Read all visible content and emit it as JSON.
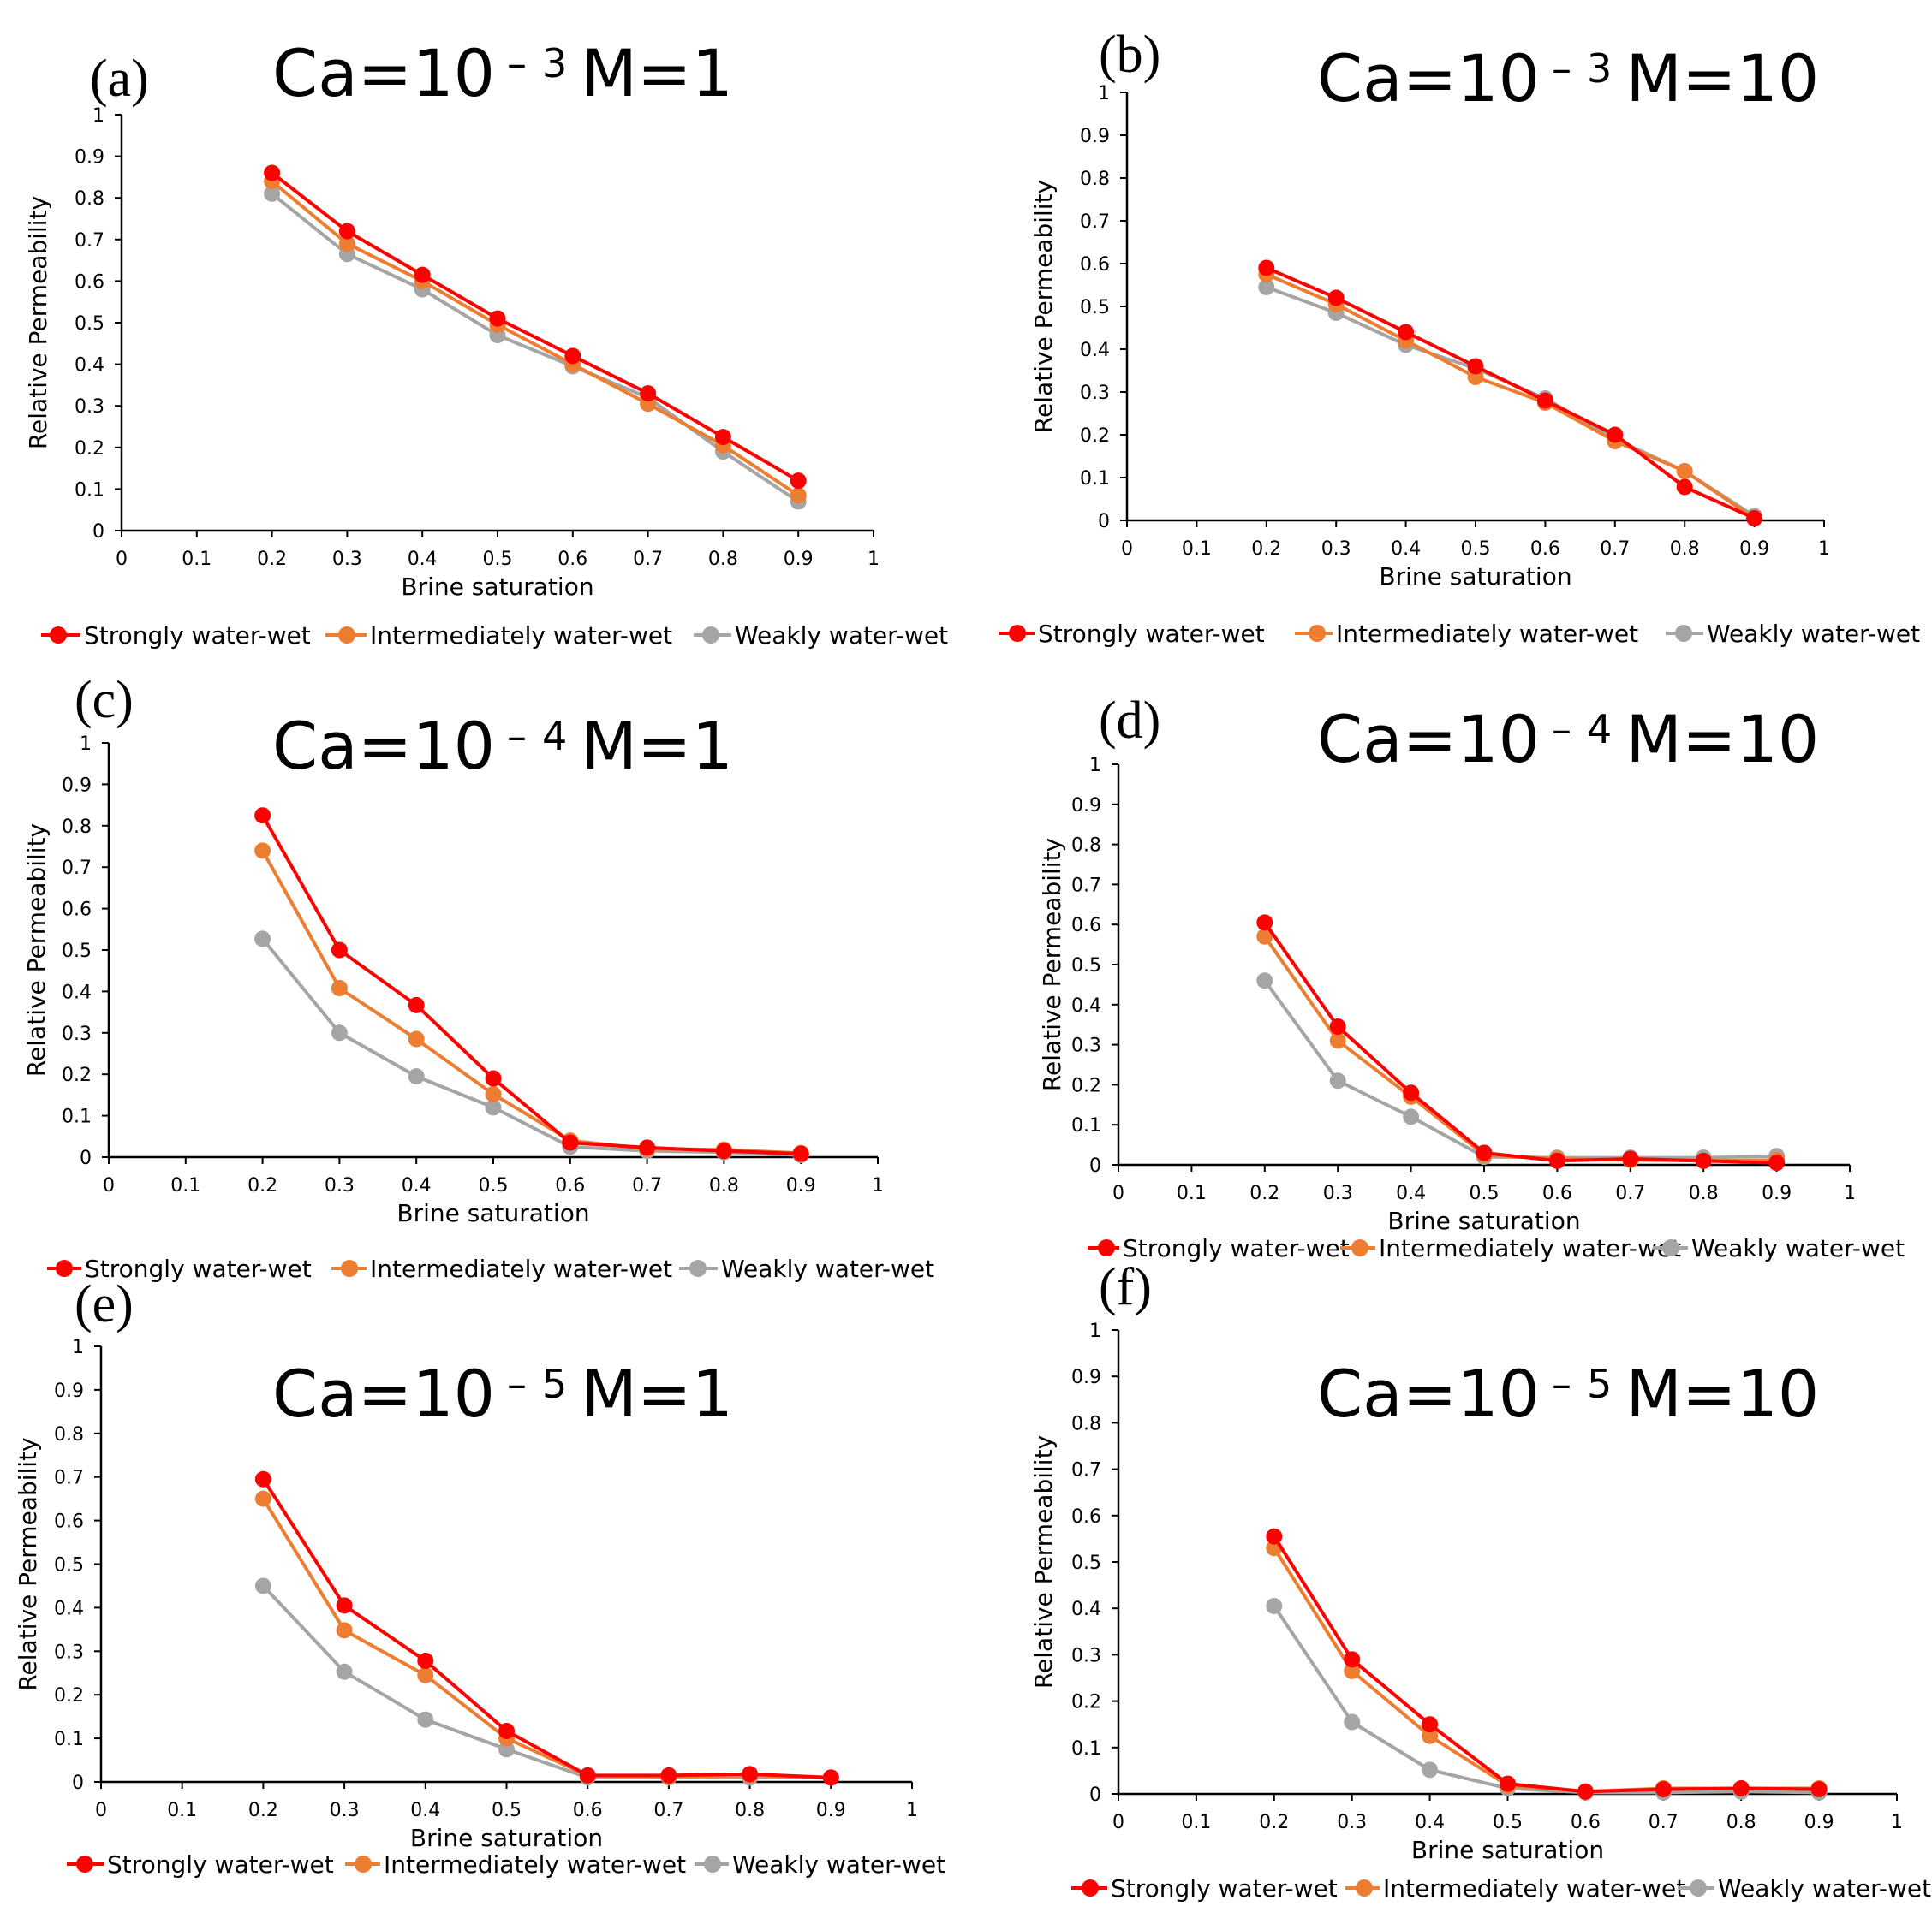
{
  "colors": {
    "strong": "#FF0000",
    "intermediate": "#ED7D31",
    "weak": "#A5A5A5",
    "axis": "#000000",
    "text": "#000000"
  },
  "legend_labels": [
    "Strongly water-wet",
    "Intermediately water-wet",
    "Weakly water-wet"
  ],
  "chart_data": [
    {
      "panel": "(a)",
      "type": "line",
      "title_base": "Ca=10",
      "title_minus": "–",
      "title_exp": "3",
      "title_m": "M=1",
      "xlabel": "Brine saturation",
      "ylabel": "Relative Permeability",
      "xlim": [
        0,
        1
      ],
      "ylim": [
        0,
        1
      ],
      "xticks": [
        "0",
        "0.1",
        "0.2",
        "0.3",
        "0.4",
        "0.5",
        "0.6",
        "0.7",
        "0.8",
        "0.9",
        "1"
      ],
      "yticks": [
        "0",
        "0.1",
        "0.2",
        "0.3",
        "0.4",
        "0.5",
        "0.6",
        "0.7",
        "0.8",
        "0.9",
        "1"
      ],
      "x": [
        0.2,
        0.3,
        0.4,
        0.5,
        0.6,
        0.7,
        0.8,
        0.9
      ],
      "series": [
        {
          "name": "Strongly water-wet",
          "values": [
            0.86,
            0.72,
            0.615,
            0.51,
            0.42,
            0.33,
            0.225,
            0.12
          ]
        },
        {
          "name": "Intermediately water-wet",
          "values": [
            0.84,
            0.69,
            0.6,
            0.495,
            0.4,
            0.305,
            0.205,
            0.085
          ]
        },
        {
          "name": "Weakly water-wet",
          "values": [
            0.81,
            0.665,
            0.58,
            0.47,
            0.395,
            0.32,
            0.19,
            0.07
          ]
        }
      ]
    },
    {
      "panel": "(b)",
      "type": "line",
      "title_base": "Ca=10",
      "title_minus": "–",
      "title_exp": "3",
      "title_m": "M=10",
      "xlabel": "Brine saturation",
      "ylabel": "Relative Permeability",
      "xlim": [
        0,
        1
      ],
      "ylim": [
        0,
        1
      ],
      "xticks": [
        "0",
        "0.1",
        "0.2",
        "0.3",
        "0.4",
        "0.5",
        "0.6",
        "0.7",
        "0.8",
        "0.9",
        "1"
      ],
      "yticks": [
        "0",
        "0.1",
        "0.2",
        "0.3",
        "0.4",
        "0.5",
        "0.6",
        "0.7",
        "0.8",
        "0.9",
        "1"
      ],
      "x": [
        0.2,
        0.3,
        0.4,
        0.5,
        0.6,
        0.7,
        0.8,
        0.9
      ],
      "series": [
        {
          "name": "Strongly water-wet",
          "values": [
            0.59,
            0.52,
            0.44,
            0.36,
            0.28,
            0.2,
            0.078,
            0.005
          ]
        },
        {
          "name": "Intermediately water-wet",
          "values": [
            0.575,
            0.505,
            0.42,
            0.335,
            0.275,
            0.185,
            0.115,
            0.005
          ]
        },
        {
          "name": "Weakly water-wet",
          "values": [
            0.545,
            0.485,
            0.41,
            0.355,
            0.285,
            0.19,
            0.115,
            0.01
          ]
        }
      ]
    },
    {
      "panel": "(c)",
      "type": "line",
      "title_base": "Ca=10",
      "title_minus": "–",
      "title_exp": "4",
      "title_m": "M=1",
      "xlabel": "Brine saturation",
      "ylabel": "Relative Permeability",
      "xlim": [
        0,
        1
      ],
      "ylim": [
        0,
        1
      ],
      "xticks": [
        "0",
        "0.1",
        "0.2",
        "0.3",
        "0.4",
        "0.5",
        "0.6",
        "0.7",
        "0.8",
        "0.9",
        "1"
      ],
      "yticks": [
        "0",
        "0.1",
        "0.2",
        "0.3",
        "0.4",
        "0.5",
        "0.6",
        "0.7",
        "0.8",
        "0.9",
        "1"
      ],
      "x": [
        0.2,
        0.3,
        0.4,
        0.5,
        0.6,
        0.7,
        0.8,
        0.9
      ],
      "series": [
        {
          "name": "Strongly water-wet",
          "values": [
            0.825,
            0.5,
            0.367,
            0.19,
            0.035,
            0.023,
            0.015,
            0.008
          ]
        },
        {
          "name": "Intermediately water-wet",
          "values": [
            0.74,
            0.408,
            0.285,
            0.152,
            0.04,
            0.02,
            0.018,
            0.01
          ]
        },
        {
          "name": "Weakly water-wet",
          "values": [
            0.527,
            0.3,
            0.195,
            0.12,
            0.025,
            0.015,
            0.012,
            0.005
          ]
        }
      ]
    },
    {
      "panel": "(d)",
      "type": "line",
      "title_base": "Ca=10",
      "title_minus": "–",
      "title_exp": "4",
      "title_m": "M=10",
      "xlabel": "Brine saturation",
      "ylabel": "Relative  Permeability",
      "xlim": [
        0,
        1
      ],
      "ylim": [
        0,
        1
      ],
      "xticks": [
        "0",
        "0.1",
        "0.2",
        "0.3",
        "0.4",
        "0.5",
        "0.6",
        "0.7",
        "0.8",
        "0.9",
        "1"
      ],
      "yticks": [
        "0",
        "0.1",
        "0.2",
        "0.3",
        "0.4",
        "0.5",
        "0.6",
        "0.7",
        "0.8",
        "0.9",
        "1"
      ],
      "x": [
        0.2,
        0.3,
        0.4,
        0.5,
        0.6,
        0.7,
        0.8,
        0.9
      ],
      "series": [
        {
          "name": "Strongly water-wet",
          "values": [
            0.605,
            0.345,
            0.18,
            0.03,
            0.01,
            0.015,
            0.01,
            0.005
          ]
        },
        {
          "name": "Intermediately water-wet",
          "values": [
            0.57,
            0.31,
            0.17,
            0.025,
            0.015,
            0.012,
            0.01,
            0.012
          ]
        },
        {
          "name": "Weakly water-wet",
          "values": [
            0.46,
            0.21,
            0.12,
            0.02,
            0.018,
            0.018,
            0.018,
            0.022
          ]
        }
      ]
    },
    {
      "panel": "(e)",
      "type": "line",
      "title_base": "Ca=10",
      "title_minus": "–",
      "title_exp": "5",
      "title_m": "M=1",
      "xlabel": "Brine saturation",
      "ylabel": "Relative Permeability",
      "xlim": [
        0,
        1
      ],
      "ylim": [
        0,
        1
      ],
      "xticks": [
        "0",
        "0.1",
        "0.2",
        "0.3",
        "0.4",
        "0.5",
        "0.6",
        "0.7",
        "0.8",
        "0.9",
        "1"
      ],
      "yticks": [
        "0",
        "0.1",
        "0.2",
        "0.3",
        "0.4",
        "0.5",
        "0.6",
        "0.7",
        "0.8",
        "0.9",
        "1"
      ],
      "x": [
        0.2,
        0.3,
        0.4,
        0.5,
        0.6,
        0.7,
        0.8,
        0.9
      ],
      "series": [
        {
          "name": "Strongly water-wet",
          "values": [
            0.695,
            0.405,
            0.278,
            0.117,
            0.015,
            0.015,
            0.018,
            0.01
          ]
        },
        {
          "name": "Intermediately water-wet",
          "values": [
            0.65,
            0.348,
            0.245,
            0.1,
            0.015,
            0.012,
            0.015,
            0.01
          ]
        },
        {
          "name": "Weakly water-wet",
          "values": [
            0.45,
            0.253,
            0.143,
            0.075,
            0.01,
            0.01,
            0.01,
            0.01
          ]
        }
      ]
    },
    {
      "panel": "(f)",
      "type": "line",
      "title_base": "Ca=10",
      "title_minus": "–",
      "title_exp": "5",
      "title_m": "M=10",
      "xlabel": "Brine saturation",
      "ylabel": "Relative Permeability",
      "xlim": [
        0,
        1
      ],
      "ylim": [
        0,
        1
      ],
      "xticks": [
        "0",
        "0.1",
        "0.2",
        "0.3",
        "0.4",
        "0.5",
        "0.6",
        "0.7",
        "0.8",
        "0.9",
        "1"
      ],
      "yticks": [
        "0",
        "0.1",
        "0.2",
        "0.3",
        "0.4",
        "0.5",
        "0.6",
        "0.7",
        "0.8",
        "0.9",
        "1"
      ],
      "x": [
        0.2,
        0.3,
        0.4,
        0.5,
        0.6,
        0.7,
        0.8,
        0.9
      ],
      "series": [
        {
          "name": "Strongly water-wet",
          "values": [
            0.555,
            0.29,
            0.15,
            0.022,
            0.005,
            0.01,
            0.012,
            0.01
          ]
        },
        {
          "name": "Intermediately water-wet",
          "values": [
            0.53,
            0.265,
            0.125,
            0.018,
            0.005,
            0.012,
            0.012,
            0.012
          ]
        },
        {
          "name": "Weakly water-wet",
          "values": [
            0.405,
            0.155,
            0.052,
            0.012,
            0.003,
            0.003,
            0.005,
            0.003
          ]
        }
      ]
    }
  ]
}
